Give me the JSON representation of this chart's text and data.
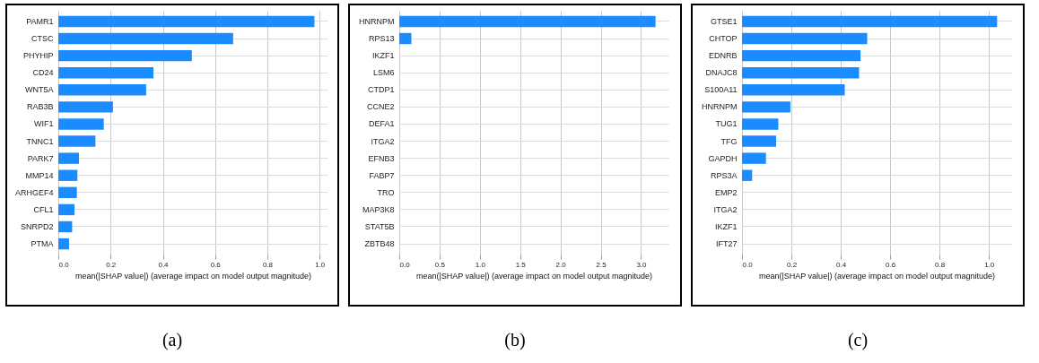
{
  "chart_data": [
    {
      "type": "bar",
      "orientation": "horizontal",
      "categories": [
        "PAMR1",
        "CTSC",
        "PHYHIP",
        "CD24",
        "WNT5A",
        "RAB3B",
        "WIF1",
        "TNNC1",
        "PARK7",
        "MMP14",
        "ARHGEF4",
        "CFL1",
        "SNRPD2",
        "PTMA"
      ],
      "values": [
        0.98,
        0.669,
        0.511,
        0.364,
        0.336,
        0.209,
        0.174,
        0.142,
        0.079,
        0.073,
        0.071,
        0.062,
        0.053,
        0.041
      ],
      "color": "#1a8cff",
      "xlabel": "mean(|SHAP value|) (average impact on model output magnitude)",
      "xlim": [
        0,
        1.03
      ],
      "xticks": [
        {
          "value": 0,
          "label": "0.0"
        },
        0.2,
        0.4,
        0.6,
        0.8,
        {
          "value": 1,
          "label": "1.0"
        }
      ],
      "grid": true,
      "annotations": [
        "(a)"
      ]
    },
    {
      "type": "bar",
      "orientation": "horizontal",
      "categories": [
        "HNRNPM",
        "RPS13",
        "IKZF1",
        "LSM6",
        "CTDP1",
        "CCNE2",
        "DEFA1",
        "ITGA2",
        "EFNB3",
        "FABP7",
        "TRO",
        "MAP3K8",
        "STAT5B",
        "ZBTB48"
      ],
      "values": [
        3.18,
        0.15,
        0,
        0,
        0,
        0,
        0,
        0,
        0,
        0,
        0,
        0,
        0,
        0
      ],
      "color": "#1a8cff",
      "xlabel": "mean(|SHAP value|) (average impact on model output magnitude)",
      "xlim": [
        0,
        3.34
      ],
      "xticks": [
        {
          "value": 0,
          "label": "0.0"
        },
        0.5,
        {
          "value": 1,
          "label": "1.0"
        },
        1.5,
        {
          "value": 2,
          "label": "2.0"
        },
        2.5,
        {
          "value": 3,
          "label": "3.0"
        }
      ],
      "grid": true,
      "annotations": [
        "(b)"
      ]
    },
    {
      "type": "bar",
      "orientation": "horizontal",
      "categories": [
        "GTSE1",
        "CHTOP",
        "EDNRB",
        "DNAJC8",
        "S100A11",
        "HNRNPM",
        "TUG1",
        "TFG",
        "GAPDH",
        "RPS3A",
        "EMP2",
        "ITGA2",
        "IKZF1",
        "IFT27"
      ],
      "values": [
        1.033,
        0.507,
        0.48,
        0.474,
        0.416,
        0.196,
        0.147,
        0.138,
        0.097,
        0.041,
        0,
        0,
        0,
        0
      ],
      "color": "#1a8cff",
      "xlabel": "mean(|SHAP value|) (average impact on model output magnitude)",
      "xlim": [
        0,
        1.09
      ],
      "xticks": [
        {
          "value": 0,
          "label": "0.0"
        },
        0.2,
        0.4,
        0.6,
        0.8,
        {
          "value": 1,
          "label": "1.0"
        }
      ],
      "grid": true,
      "annotations": [
        "(c)"
      ]
    }
  ]
}
